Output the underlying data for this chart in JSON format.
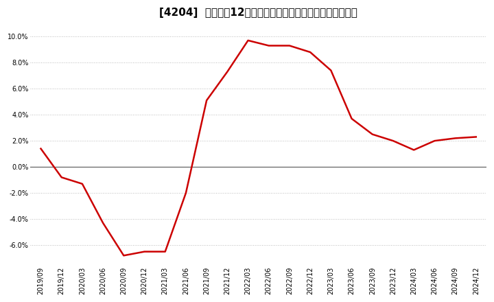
{
  "title": "[4204]  売上高の12か月移動合計の対前年同期増減率の推移",
  "x_labels": [
    "2019/09",
    "2019/12",
    "2020/03",
    "2020/06",
    "2020/09",
    "2020/12",
    "2021/03",
    "2021/06",
    "2021/09",
    "2021/12",
    "2022/03",
    "2022/06",
    "2022/09",
    "2022/12",
    "2023/03",
    "2023/06",
    "2023/09",
    "2023/12",
    "2024/03",
    "2024/06",
    "2024/09",
    "2024/12"
  ],
  "y_values": [
    1.4,
    -0.8,
    -1.3,
    -4.3,
    -6.8,
    -6.5,
    -6.5,
    -2.0,
    5.1,
    7.3,
    9.7,
    9.3,
    9.3,
    8.8,
    7.4,
    3.7,
    2.5,
    2.0,
    1.3,
    2.0,
    2.2,
    2.3
  ],
  "line_color": "#cc0000",
  "background_color": "#ffffff",
  "plot_bg_color": "#ffffff",
  "ylim": [
    -7.5,
    11.0
  ],
  "yticks": [
    -6.0,
    -4.0,
    -2.0,
    0.0,
    2.0,
    4.0,
    6.0,
    8.0,
    10.0
  ],
  "grid_color": "#bbbbbb",
  "zero_line_color": "#555555",
  "title_fontsize": 11,
  "tick_fontsize": 7,
  "line_width": 1.8
}
